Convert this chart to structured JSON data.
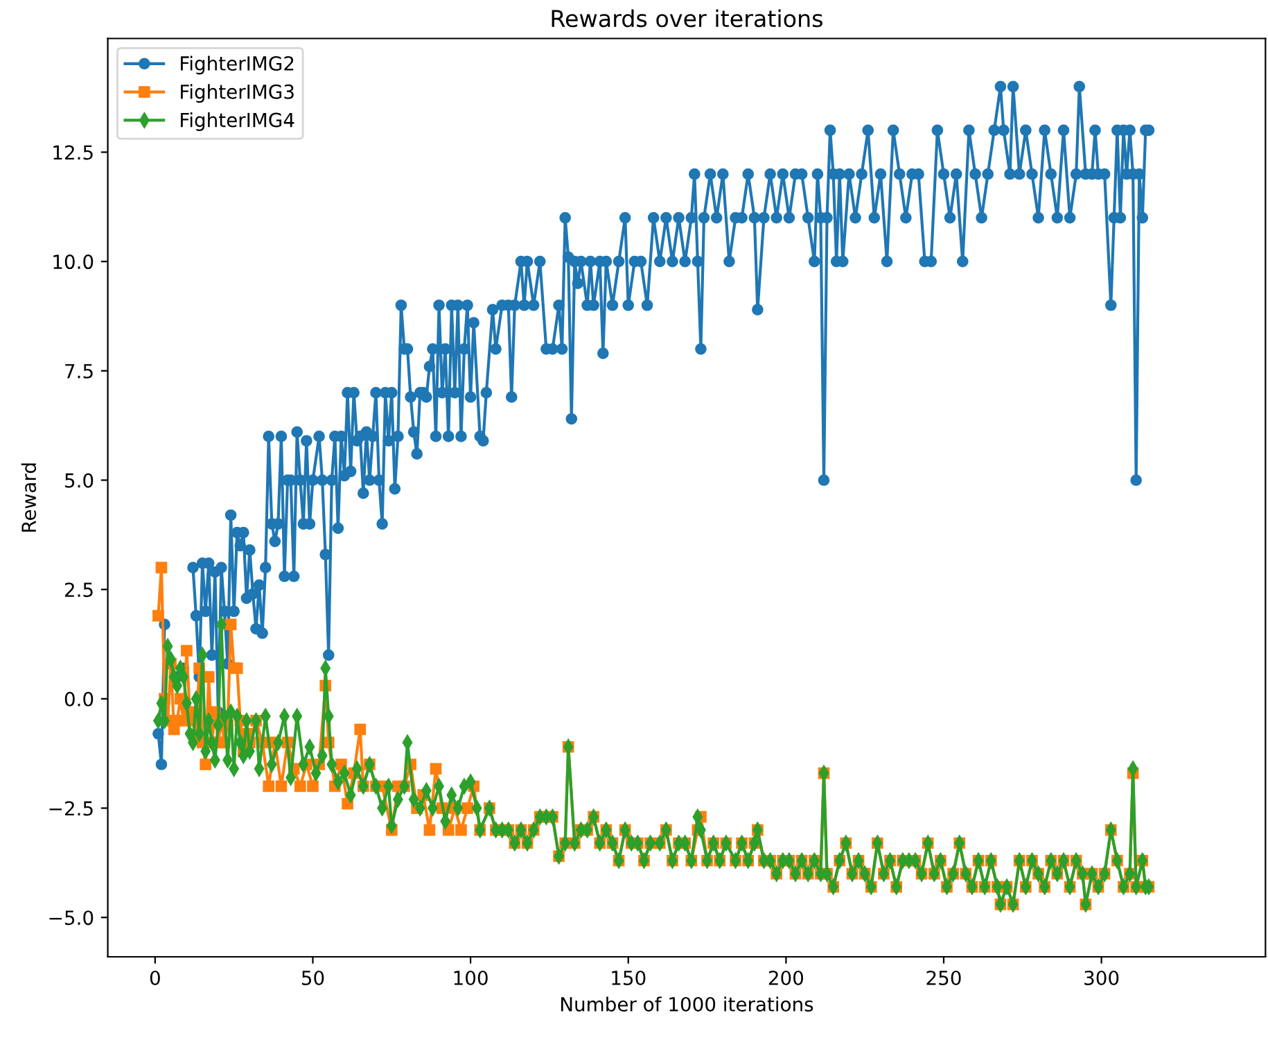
{
  "chart_data": {
    "type": "line",
    "title": "Rewards over iterations",
    "xlabel": "Number of 1000 iterations",
    "ylabel": "Reward",
    "xlim": [
      -15,
      352
    ],
    "ylim": [
      -5.9,
      15.1
    ],
    "xticks": [
      0,
      50,
      100,
      150,
      200,
      250,
      300
    ],
    "yticks": [
      {
        "value": -5,
        "label": "−5.0"
      },
      {
        "value": -2.5,
        "label": "−2.5"
      },
      {
        "value": 0,
        "label": "0.0"
      },
      {
        "value": 2.5,
        "label": "2.5"
      },
      {
        "value": 5,
        "label": "5.0"
      },
      {
        "value": 7.5,
        "label": "7.5"
      },
      {
        "value": 10,
        "label": "10.0"
      },
      {
        "value": 12.5,
        "label": "12.5"
      }
    ],
    "legend": "top left",
    "grid": false,
    "line_style": "solid",
    "series": [
      {
        "name": "FighterIMG2",
        "color": "#1f77b4",
        "marker": "circle",
        "x": [
          1,
          2,
          3,
          5,
          7,
          9,
          10,
          12,
          13,
          14,
          15,
          16,
          17,
          18,
          19,
          20,
          21,
          22,
          23,
          24,
          25,
          26,
          27,
          28,
          29,
          30,
          31,
          32,
          33,
          34,
          35,
          36,
          37,
          38,
          39,
          40,
          41,
          42,
          43,
          44,
          45,
          46,
          47,
          48,
          49,
          50,
          52,
          53,
          54,
          55,
          56,
          57,
          58,
          59,
          60,
          61,
          62,
          63,
          64,
          65,
          66,
          67,
          68,
          69,
          70,
          71,
          72,
          73,
          74,
          75,
          76,
          77,
          78,
          79,
          80,
          81,
          82,
          83,
          84,
          85,
          86,
          87,
          88,
          89,
          90,
          91,
          92,
          93,
          94,
          95,
          96,
          97,
          98,
          99,
          100,
          101,
          103,
          104,
          105,
          107,
          108,
          110,
          112,
          113,
          114,
          116,
          117,
          118,
          120,
          122,
          124,
          126,
          128,
          129,
          130,
          131,
          132,
          133,
          134,
          135,
          137,
          138,
          139,
          141,
          142,
          143,
          145,
          147,
          149,
          150,
          152,
          154,
          156,
          158,
          160,
          162,
          164,
          166,
          168,
          170,
          171,
          172,
          173,
          174,
          176,
          178,
          180,
          182,
          184,
          186,
          188,
          190,
          191,
          193,
          195,
          197,
          199,
          201,
          203,
          205,
          207,
          209,
          210,
          211,
          212,
          213,
          214,
          215,
          216,
          217,
          218,
          220,
          222,
          224,
          226,
          228,
          230,
          232,
          234,
          236,
          238,
          240,
          242,
          244,
          246,
          248,
          250,
          252,
          254,
          256,
          258,
          260,
          262,
          264,
          266,
          268,
          269,
          271,
          272,
          274,
          276,
          278,
          280,
          282,
          284,
          286,
          288,
          290,
          292,
          293,
          295,
          297,
          298,
          299,
          301,
          303,
          304,
          305,
          306,
          307,
          308,
          309,
          310,
          311,
          312,
          313,
          314,
          315
        ],
        "values": [
          -0.8,
          -1.5,
          1.7,
          null,
          0.5,
          0.7,
          null,
          3.0,
          1.9,
          0.5,
          3.1,
          2.0,
          3.1,
          1.0,
          2.9,
          -0.3,
          3.0,
          2.0,
          0.8,
          4.2,
          2.0,
          3.8,
          3.5,
          3.8,
          2.3,
          3.4,
          2.4,
          1.6,
          2.6,
          1.5,
          3.0,
          6.0,
          4.0,
          3.6,
          4.0,
          6.0,
          2.8,
          5.0,
          5.0,
          2.8,
          6.1,
          5.0,
          4.0,
          5.9,
          4.0,
          5.0,
          6.0,
          5.0,
          3.3,
          1.0,
          5.0,
          6.0,
          3.9,
          6.0,
          5.1,
          7.0,
          5.2,
          7.0,
          5.9,
          6.0,
          4.7,
          6.1,
          5.0,
          6.0,
          7.0,
          5.0,
          4.0,
          7.0,
          5.9,
          7.0,
          4.8,
          6.0,
          9.0,
          8.0,
          8.0,
          6.9,
          6.1,
          5.6,
          7.0,
          7.0,
          6.9,
          7.6,
          8.0,
          6.0,
          9.0,
          7.0,
          8.0,
          6.0,
          9.0,
          7.0,
          9.0,
          6.0,
          8.0,
          9.0,
          6.9,
          8.6,
          6.0,
          5.9,
          7.0,
          8.9,
          8.0,
          9.0,
          9.0,
          6.9,
          9.0,
          10.0,
          9.0,
          10.0,
          9.0,
          10.0,
          8.0,
          8.0,
          9.0,
          8.0,
          11.0,
          10.1,
          6.4,
          10.0,
          9.5,
          10.0,
          9.0,
          10.0,
          9.0,
          10.0,
          7.9,
          10.0,
          9.0,
          10.0,
          11.0,
          9.0,
          10.0,
          10.0,
          9.0,
          11.0,
          10.0,
          11.0,
          10.0,
          11.0,
          10.0,
          11.0,
          12.0,
          10.0,
          8.0,
          11.0,
          12.0,
          11.0,
          12.0,
          10.0,
          11.0,
          11.0,
          12.0,
          11.0,
          8.9,
          11.0,
          12.0,
          11.0,
          12.0,
          11.0,
          12.0,
          12.0,
          11.0,
          10.0,
          12.0,
          11.0,
          5.0,
          11.0,
          13.0,
          12.0,
          10.0,
          12.0,
          10.0,
          12.0,
          11.0,
          12.0,
          13.0,
          11.0,
          12.0,
          10.0,
          13.0,
          12.0,
          11.0,
          12.0,
          12.0,
          10.0,
          10.0,
          13.0,
          12.0,
          11.0,
          12.0,
          10.0,
          13.0,
          12.0,
          11.0,
          12.0,
          13.0,
          14.0,
          13.0,
          12.0,
          14.0,
          12.0,
          13.0,
          12.0,
          11.0,
          13.0,
          12.0,
          11.0,
          13.0,
          11.0,
          12.0,
          14.0,
          12.0,
          12.0,
          13.0,
          12.0,
          12.0,
          9.0,
          11.0,
          13.0,
          11.0,
          13.0,
          12.0,
          13.0,
          12.0,
          5.0,
          12.0,
          11.0,
          13.0,
          13.0
        ]
      },
      {
        "name": "FighterIMG3",
        "color": "#ff7f0e",
        "marker": "square",
        "x": [
          1,
          2,
          3,
          4,
          5,
          6,
          7,
          8,
          9,
          10,
          11,
          12,
          13,
          14,
          15,
          16,
          17,
          18,
          19,
          20,
          21,
          22,
          23,
          24,
          25,
          26,
          27,
          28,
          29,
          30,
          32,
          34,
          36,
          38,
          40,
          42,
          44,
          46,
          48,
          50,
          52,
          54,
          55,
          57,
          59,
          61,
          63,
          65,
          66,
          68,
          70,
          72,
          75,
          77,
          79,
          81,
          83,
          85,
          87,
          89,
          91,
          93,
          95,
          97,
          99,
          101,
          103,
          106,
          108,
          110,
          112,
          114,
          116,
          118,
          120,
          122,
          124,
          126,
          128,
          130,
          131,
          133,
          135,
          137,
          139,
          141,
          143,
          145,
          147,
          149,
          151,
          153,
          155,
          157,
          160,
          162,
          164,
          166,
          168,
          170,
          172,
          173,
          175,
          177,
          179,
          181,
          184,
          186,
          188,
          190,
          191,
          193,
          195,
          197,
          199,
          201,
          203,
          205,
          207,
          209,
          211,
          212,
          213,
          215,
          217,
          219,
          221,
          223,
          225,
          227,
          229,
          231,
          233,
          235,
          237,
          239,
          241,
          243,
          245,
          247,
          249,
          251,
          253,
          255,
          257,
          259,
          261,
          263,
          265,
          267,
          268,
          270,
          272,
          274,
          276,
          278,
          280,
          282,
          284,
          286,
          288,
          290,
          292,
          294,
          295,
          297,
          299,
          301,
          303,
          305,
          307,
          309,
          310,
          311,
          313,
          314,
          315
        ],
        "values": [
          1.9,
          3.0,
          0.0,
          -0.5,
          0.8,
          -0.7,
          -0.5,
          0.0,
          -0.5,
          1.1,
          -0.3,
          -0.5,
          -0.9,
          0.7,
          -1.0,
          -1.5,
          0.5,
          -1.0,
          -0.3,
          -1.0,
          -0.5,
          -1.0,
          -0.6,
          1.7,
          0.7,
          0.7,
          -0.5,
          -1.2,
          -0.8,
          -1.0,
          -0.5,
          -1.0,
          -2.0,
          -1.0,
          -2.0,
          -1.0,
          -1.6,
          -2.0,
          -1.5,
          -2.0,
          -1.5,
          0.3,
          -1.0,
          -2.0,
          -1.5,
          -2.4,
          -1.7,
          -0.7,
          -2.0,
          -1.5,
          -2.0,
          -2.0,
          -3.0,
          -2.0,
          -2.0,
          -1.5,
          -2.5,
          -2.2,
          -3.0,
          -1.6,
          -2.5,
          -3.0,
          -2.5,
          -3.0,
          -2.5,
          -2.0,
          -3.0,
          -2.5,
          -3.0,
          -3.0,
          -3.0,
          -3.3,
          -3.0,
          -3.3,
          -3.0,
          -2.7,
          -2.7,
          -2.7,
          -3.6,
          -3.3,
          -1.1,
          -3.3,
          -3.0,
          -3.0,
          -2.7,
          -3.3,
          -3.0,
          -3.3,
          -3.7,
          -3.0,
          -3.3,
          -3.3,
          -3.7,
          -3.3,
          -3.3,
          -3.0,
          -3.7,
          -3.3,
          -3.3,
          -3.7,
          -3.0,
          -2.7,
          -3.7,
          -3.3,
          -3.7,
          -3.3,
          -3.7,
          -3.3,
          -3.7,
          -3.3,
          -3.0,
          -3.7,
          -3.7,
          -4.0,
          -3.7,
          -3.7,
          -4.0,
          -3.7,
          -4.0,
          -3.7,
          -4.0,
          -1.7,
          -4.0,
          -4.3,
          -3.7,
          -3.3,
          -4.0,
          -3.7,
          -4.0,
          -4.3,
          -3.3,
          -4.0,
          -3.7,
          -4.3,
          -3.7,
          -3.7,
          -3.7,
          -4.0,
          -3.3,
          -4.0,
          -3.7,
          -4.3,
          -4.0,
          -3.3,
          -4.0,
          -4.3,
          -3.7,
          -4.3,
          -3.7,
          -4.3,
          -4.7,
          -4.3,
          -4.7,
          -3.7,
          -4.3,
          -3.7,
          -4.0,
          -4.3,
          -3.7,
          -4.0,
          -3.7,
          -4.3,
          -3.7,
          -4.0,
          -4.7,
          -4.0,
          -4.3,
          -4.0,
          -3.0,
          -3.7,
          -4.3,
          -4.0,
          -1.7,
          -4.3,
          -3.7,
          -4.3,
          -4.3
        ]
      },
      {
        "name": "FighterIMG4",
        "color": "#2ca02c",
        "marker": "diamond",
        "x": [
          1,
          2,
          3,
          4,
          5,
          6,
          7,
          8,
          9,
          10,
          11,
          12,
          13,
          14,
          15,
          16,
          17,
          18,
          19,
          20,
          21,
          22,
          23,
          24,
          25,
          26,
          27,
          28,
          29,
          30,
          32,
          33,
          35,
          37,
          39,
          41,
          43,
          45,
          47,
          49,
          51,
          53,
          54,
          55,
          56,
          58,
          60,
          62,
          64,
          66,
          68,
          70,
          72,
          74,
          75,
          77,
          79,
          80,
          82,
          84,
          86,
          88,
          90,
          92,
          94,
          96,
          98,
          100,
          102,
          103,
          106,
          108,
          110,
          112,
          114,
          116,
          118,
          120,
          122,
          124,
          126,
          128,
          130,
          131,
          133,
          135,
          137,
          139,
          141,
          143,
          145,
          147,
          149,
          151,
          153,
          155,
          157,
          160,
          162,
          164,
          166,
          168,
          170,
          172,
          173,
          175,
          177,
          179,
          181,
          184,
          186,
          188,
          190,
          191,
          193,
          195,
          197,
          199,
          201,
          203,
          205,
          207,
          209,
          211,
          212,
          213,
          215,
          217,
          219,
          221,
          223,
          225,
          227,
          229,
          231,
          233,
          235,
          237,
          239,
          241,
          243,
          245,
          247,
          249,
          251,
          253,
          255,
          257,
          259,
          261,
          263,
          265,
          267,
          268,
          270,
          272,
          274,
          276,
          278,
          280,
          282,
          284,
          286,
          288,
          290,
          292,
          294,
          295,
          297,
          299,
          301,
          303,
          305,
          307,
          309,
          310,
          311,
          313,
          314,
          315
        ],
        "values": [
          -0.5,
          -0.1,
          -0.5,
          1.2,
          0.9,
          0.5,
          0.3,
          0.7,
          0.5,
          -0.1,
          -0.8,
          -1.0,
          0.0,
          -0.8,
          1.0,
          -1.2,
          -0.5,
          -1.0,
          -1.4,
          -0.6,
          1.7,
          -0.4,
          -1.4,
          -0.3,
          -1.6,
          -0.4,
          -1.0,
          -1.3,
          -0.5,
          -1.2,
          -0.5,
          -1.6,
          -0.4,
          -1.5,
          -1.0,
          -0.4,
          -1.8,
          -0.4,
          -1.5,
          -1.1,
          -1.7,
          -1.3,
          0.7,
          -0.4,
          -1.5,
          -1.9,
          -1.7,
          -2.2,
          -1.6,
          -2.0,
          -1.5,
          -2.0,
          -2.5,
          -2.0,
          -2.9,
          -2.3,
          -2.0,
          -1.0,
          -2.3,
          -2.5,
          -2.1,
          -2.5,
          -2.0,
          -2.8,
          -2.2,
          -2.5,
          -2.0,
          -1.9,
          -2.5,
          -3.0,
          -2.5,
          -3.0,
          -3.0,
          -3.0,
          -3.3,
          -3.0,
          -3.3,
          -3.0,
          -2.7,
          -2.7,
          -2.7,
          -3.6,
          -3.3,
          -1.1,
          -3.3,
          -3.0,
          -3.0,
          -2.7,
          -3.3,
          -3.0,
          -3.3,
          -3.7,
          -3.0,
          -3.3,
          -3.3,
          -3.7,
          -3.3,
          -3.3,
          -3.0,
          -3.7,
          -3.3,
          -3.3,
          -3.7,
          -2.7,
          -3.0,
          -3.7,
          -3.3,
          -3.7,
          -3.3,
          -3.7,
          -3.3,
          -3.7,
          -3.3,
          -3.0,
          -3.7,
          -3.7,
          -4.0,
          -3.7,
          -3.7,
          -4.0,
          -3.7,
          -4.0,
          -3.7,
          -4.0,
          -1.7,
          -4.0,
          -4.3,
          -3.7,
          -3.3,
          -4.0,
          -3.7,
          -4.0,
          -4.3,
          -3.3,
          -4.0,
          -3.7,
          -4.3,
          -3.7,
          -3.7,
          -3.7,
          -4.0,
          -3.3,
          -4.0,
          -3.7,
          -4.3,
          -4.0,
          -3.3,
          -4.0,
          -4.3,
          -3.7,
          -4.3,
          -3.7,
          -4.3,
          -4.7,
          -4.3,
          -4.7,
          -3.7,
          -4.3,
          -3.7,
          -4.0,
          -4.3,
          -3.7,
          -4.0,
          -3.7,
          -4.3,
          -3.7,
          -4.0,
          -4.7,
          -4.0,
          -4.3,
          -4.0,
          -3.0,
          -3.7,
          -4.3,
          -4.0,
          -1.6,
          -4.3,
          -3.7,
          -4.3,
          -4.3
        ]
      }
    ]
  }
}
